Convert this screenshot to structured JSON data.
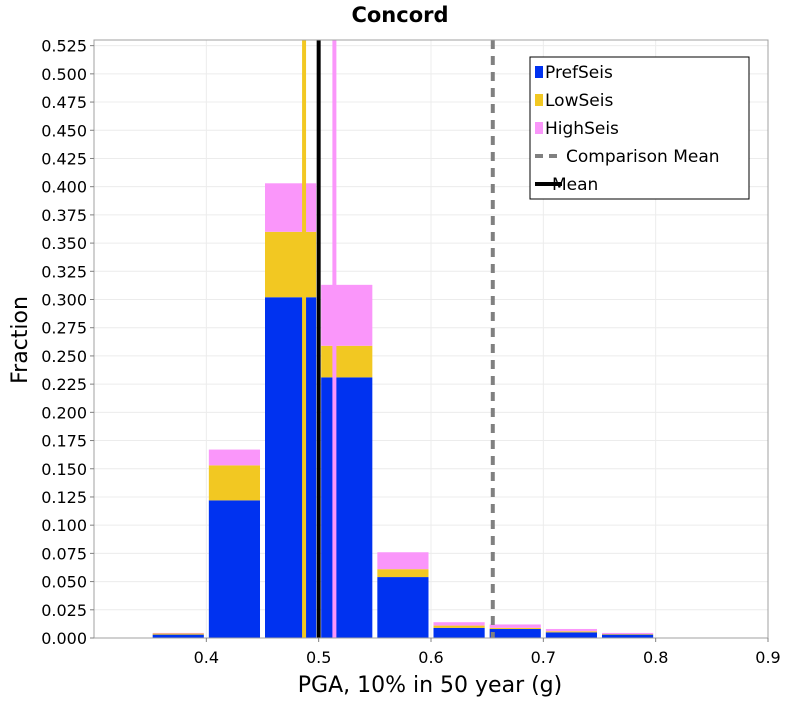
{
  "chart_data": {
    "type": "bar",
    "title": "Concord",
    "xlabel": "PGA, 10% in 50 year (g)",
    "ylabel": "Fraction",
    "xlim": [
      0.3,
      0.9
    ],
    "ylim": [
      0,
      0.53
    ],
    "x_ticks": [
      "0.4",
      "0.5",
      "0.6",
      "0.7",
      "0.8",
      "0.9"
    ],
    "y_ticks": [
      "0.000",
      "0.025",
      "0.050",
      "0.075",
      "0.100",
      "0.125",
      "0.150",
      "0.175",
      "0.200",
      "0.225",
      "0.250",
      "0.275",
      "0.300",
      "0.325",
      "0.350",
      "0.375",
      "0.400",
      "0.425",
      "0.450",
      "0.475",
      "0.500",
      "0.525"
    ],
    "grid": true,
    "stacked": true,
    "bin_width": 0.05,
    "bin_centers": [
      0.375,
      0.425,
      0.475,
      0.525,
      0.575,
      0.625,
      0.675,
      0.725,
      0.775
    ],
    "series": [
      {
        "name": "PrefSeis",
        "color": "#0032f0",
        "values": [
          0.003,
          0.122,
          0.302,
          0.231,
          0.054,
          0.009,
          0.008,
          0.005,
          0.003
        ]
      },
      {
        "name": "LowSeis",
        "color": "#f2c822",
        "values": [
          0.001,
          0.031,
          0.058,
          0.028,
          0.007,
          0.002,
          0.001,
          0.001,
          0.0005
        ]
      },
      {
        "name": "HighSeis",
        "color": "#fa96fa",
        "values": [
          0.0005,
          0.014,
          0.043,
          0.054,
          0.015,
          0.003,
          0.003,
          0.002,
          0.001
        ]
      }
    ],
    "vertical_lines": [
      {
        "name": "LowSeis mean",
        "x": 0.487,
        "color": "#f2c822",
        "style": "solid"
      },
      {
        "name": "Mean",
        "x": 0.5,
        "color": "#000000",
        "style": "solid"
      },
      {
        "name": "HighSeis mean",
        "x": 0.514,
        "color": "#fa96fa",
        "style": "solid"
      },
      {
        "name": "Comparison Mean",
        "x": 0.655,
        "color": "#808080",
        "style": "dashed"
      }
    ],
    "legend": {
      "placement": "top-right",
      "entries": [
        {
          "label": "PrefSeis",
          "kind": "box",
          "color": "#0032f0"
        },
        {
          "label": "LowSeis",
          "kind": "box",
          "color": "#f2c822"
        },
        {
          "label": "HighSeis",
          "kind": "box",
          "color": "#fa96fa"
        },
        {
          "label": "Comparison Mean",
          "kind": "dashed-line",
          "color": "#808080"
        },
        {
          "label": "Mean",
          "kind": "line",
          "color": "#000000"
        }
      ]
    }
  }
}
